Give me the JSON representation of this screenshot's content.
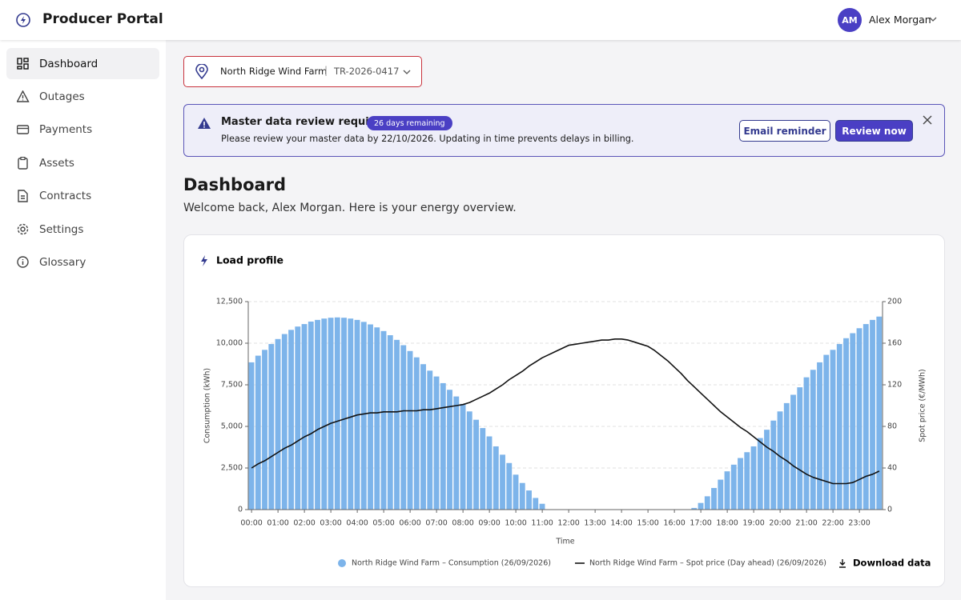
{
  "header": {
    "title": "Producer Portal",
    "user_initials": "AM",
    "user_name": "Alex Morgan"
  },
  "nav": [
    {
      "label": "Dashboard",
      "active": true
    },
    {
      "label": "Outages"
    },
    {
      "label": "Payments"
    },
    {
      "label": "Assets"
    },
    {
      "label": "Contracts"
    },
    {
      "label": "Settings"
    },
    {
      "label": "Glossary"
    }
  ],
  "site_selector": {
    "name": "North Ridge Wind Farm",
    "id": "TR-2026-0417"
  },
  "banner": {
    "title": "Master data review required",
    "badge": "26 days remaining",
    "message": "Please review your master data by 22/10/2026. Updating in time prevents delays in billing.",
    "buttons": [
      "Email reminder",
      "Review now"
    ]
  },
  "page": {
    "title": "Dashboard",
    "subtitle": "Welcome back, Alex Morgan. Here is your energy overview."
  },
  "card": {
    "title": "Load profile",
    "download": "Download data"
  },
  "chart_data": {
    "type": "combo",
    "x_label": "Time",
    "y_label": "Consumption (kWh)",
    "y2_label": "Spot price (€/MWh)",
    "categories": [
      "00:00",
      null,
      null,
      null,
      "01:00",
      null,
      null,
      null,
      "02:00",
      null,
      null,
      null,
      "03:00",
      null,
      null,
      null,
      "04:00",
      null,
      null,
      null,
      "05:00",
      null,
      null,
      null,
      "06:00",
      null,
      null,
      null,
      "07:00",
      null,
      null,
      null,
      "08:00",
      null,
      null,
      null,
      "09:00",
      null,
      null,
      null,
      "10:00",
      null,
      null,
      null,
      "11:00",
      null,
      null,
      null,
      "12:00",
      null,
      null,
      null,
      "13:00",
      null,
      null,
      null,
      "14:00",
      null,
      null,
      null,
      "15:00",
      null,
      null,
      null,
      "16:00",
      null,
      null,
      null,
      "17:00",
      null,
      null,
      null,
      "18:00",
      null,
      null,
      null,
      "19:00",
      null,
      null,
      null,
      "20:00",
      null,
      null,
      null,
      "21:00",
      null,
      null,
      null,
      "22:00",
      null,
      null,
      null,
      "23:00",
      null,
      null,
      null
    ],
    "series": [
      {
        "name": "North Ridge Wind Farm – Consumption (26/09/2026)",
        "type": "bar",
        "color": "#7db4ea",
        "values": [
          8850,
          9250,
          9600,
          9950,
          10250,
          10550,
          10800,
          11000,
          11150,
          11300,
          11400,
          11480,
          11530,
          11550,
          11530,
          11480,
          11400,
          11280,
          11130,
          10950,
          10730,
          10480,
          10200,
          9880,
          9530,
          9150,
          8740,
          8350,
          8000,
          7600,
          7200,
          6800,
          6350,
          5900,
          5400,
          4900,
          4400,
          3800,
          3300,
          2800,
          2100,
          1600,
          1150,
          700,
          350,
          0,
          0,
          0,
          0,
          0,
          0,
          0,
          0,
          0,
          0,
          0,
          0,
          0,
          0,
          0,
          0,
          0,
          0,
          0,
          0,
          0,
          0,
          100,
          400,
          800,
          1300,
          1800,
          2300,
          2700,
          3100,
          3450,
          3800,
          4300,
          4800,
          5350,
          5900,
          6400,
          6900,
          7350,
          7950,
          8400,
          8850,
          9300,
          9600,
          9950,
          10300,
          10600,
          10900,
          11150,
          11400,
          11600
        ]
      },
      {
        "name": "North Ridge Wind Farm – Spot price (Day ahead) (26/09/2026)",
        "type": "line",
        "axis": "y2",
        "color": "#111111",
        "values": [
          40,
          44,
          47,
          51,
          55,
          59,
          62,
          66,
          70,
          73,
          77,
          80,
          83,
          85,
          87,
          89,
          91,
          92,
          93,
          93,
          94,
          94,
          94,
          95,
          95,
          95,
          96,
          96,
          97,
          98,
          99,
          100,
          101,
          103,
          106,
          109,
          112,
          116,
          120,
          125,
          129,
          133,
          138,
          142,
          146,
          149,
          152,
          155,
          158,
          159,
          160,
          161,
          162,
          163,
          163,
          164,
          164,
          163,
          161,
          159,
          157,
          153,
          148,
          143,
          137,
          131,
          124,
          118,
          112,
          106,
          100,
          94,
          89,
          84,
          79,
          75,
          70,
          65,
          60,
          56,
          51,
          47,
          42,
          38,
          34,
          31,
          29,
          27,
          25,
          25,
          25,
          26,
          29,
          32,
          34,
          37
        ]
      }
    ],
    "ylim": [
      0,
      12500
    ],
    "yticks": [
      0,
      {
        "value": 2500,
        "label": "2,500"
      },
      {
        "value": 5000,
        "label": "5,000"
      },
      {
        "value": 7500,
        "label": "7,500"
      },
      {
        "value": 10000,
        "label": "10,000"
      },
      {
        "value": 12500,
        "label": "12,500"
      }
    ],
    "y2lim": [
      0,
      200
    ],
    "y2ticks": [
      0,
      40,
      80,
      120,
      160,
      200
    ],
    "grid": true,
    "legend": "bottom"
  }
}
